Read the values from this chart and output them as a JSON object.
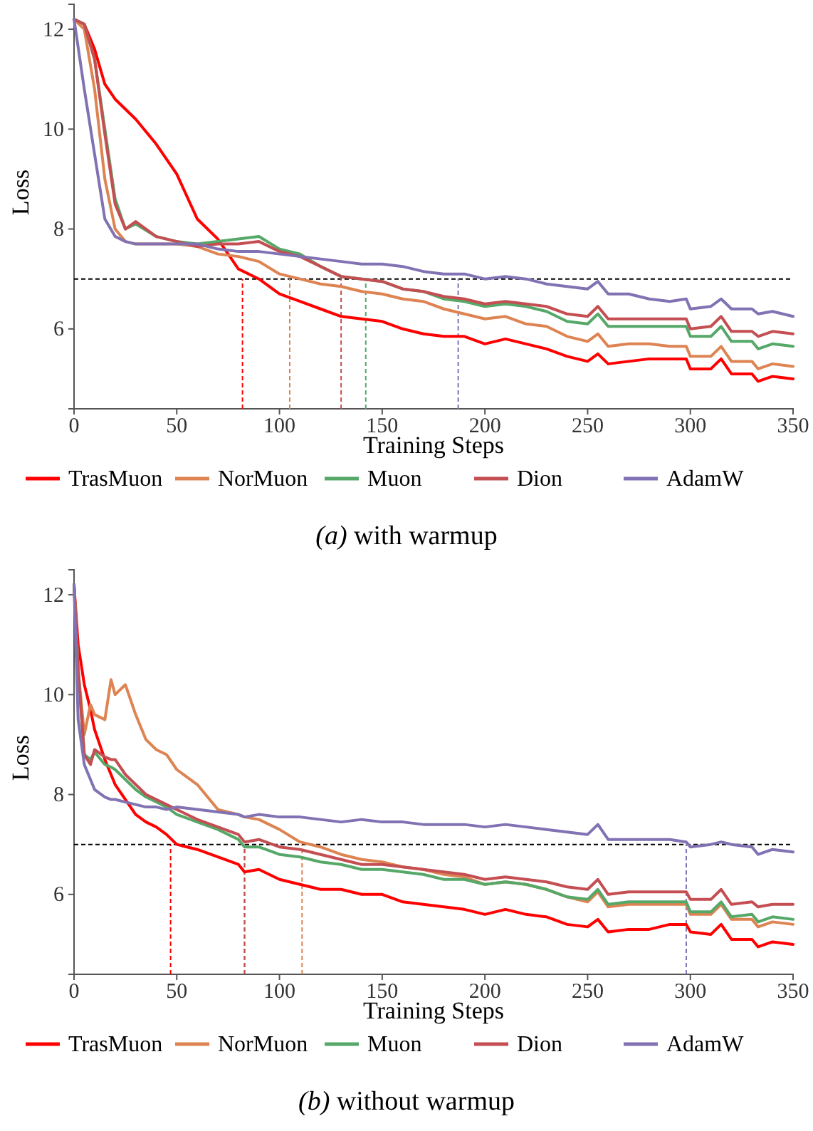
{
  "chart_data": [
    {
      "type": "line",
      "title": "(a) with warmup",
      "xlabel": "Training Steps",
      "ylabel": "Loss",
      "xlim": [
        0,
        350
      ],
      "xticks": [
        0,
        50,
        100,
        150,
        200,
        250,
        300,
        350
      ],
      "ylim": [
        4.4,
        12.5
      ],
      "yticks": [
        6,
        8,
        10,
        12
      ],
      "grid": false,
      "legend": "bottom",
      "line_style": "solid",
      "marker": "none",
      "x": [
        0,
        5,
        10,
        15,
        20,
        25,
        30,
        40,
        50,
        60,
        70,
        80,
        90,
        100,
        110,
        120,
        130,
        140,
        150,
        160,
        170,
        180,
        190,
        200,
        210,
        220,
        230,
        240,
        250,
        255,
        260,
        270,
        280,
        290,
        298,
        300,
        310,
        315,
        320,
        330,
        333,
        340,
        350
      ],
      "series": [
        {
          "name": "TrasMuon",
          "color": "#ff0000",
          "values": [
            12.2,
            12.1,
            11.6,
            10.9,
            10.6,
            10.4,
            10.2,
            9.7,
            9.1,
            8.2,
            7.8,
            7.2,
            7.0,
            6.7,
            6.55,
            6.4,
            6.25,
            6.2,
            6.15,
            6.0,
            5.9,
            5.85,
            5.85,
            5.7,
            5.8,
            5.7,
            5.6,
            5.45,
            5.35,
            5.5,
            5.3,
            5.35,
            5.4,
            5.4,
            5.4,
            5.2,
            5.2,
            5.4,
            5.1,
            5.1,
            4.95,
            5.05,
            5.0
          ]
        },
        {
          "name": "NorMuon",
          "color": "#dd8452",
          "values": [
            12.2,
            12.0,
            10.8,
            9.0,
            8.0,
            7.75,
            7.7,
            7.7,
            7.7,
            7.65,
            7.5,
            7.45,
            7.35,
            7.1,
            7.0,
            6.9,
            6.85,
            6.75,
            6.7,
            6.6,
            6.55,
            6.4,
            6.3,
            6.2,
            6.25,
            6.1,
            6.05,
            5.85,
            5.75,
            5.9,
            5.65,
            5.7,
            5.7,
            5.65,
            5.65,
            5.45,
            5.45,
            5.65,
            5.35,
            5.35,
            5.2,
            5.3,
            5.25
          ]
        },
        {
          "name": "Muon",
          "color": "#55a868",
          "values": [
            12.2,
            12.1,
            11.4,
            10.0,
            8.6,
            8.0,
            8.1,
            7.85,
            7.75,
            7.7,
            7.75,
            7.8,
            7.85,
            7.6,
            7.5,
            7.25,
            7.05,
            7.0,
            6.95,
            6.8,
            6.75,
            6.6,
            6.55,
            6.45,
            6.5,
            6.45,
            6.35,
            6.15,
            6.1,
            6.3,
            6.05,
            6.05,
            6.05,
            6.05,
            6.05,
            5.85,
            5.85,
            6.05,
            5.75,
            5.75,
            5.6,
            5.7,
            5.65
          ]
        },
        {
          "name": "Dion",
          "color": "#c44e52",
          "values": [
            12.2,
            12.1,
            11.4,
            9.9,
            8.5,
            8.0,
            8.15,
            7.85,
            7.75,
            7.65,
            7.7,
            7.7,
            7.75,
            7.55,
            7.45,
            7.25,
            7.05,
            7.0,
            6.95,
            6.8,
            6.75,
            6.65,
            6.6,
            6.5,
            6.55,
            6.5,
            6.45,
            6.3,
            6.25,
            6.45,
            6.2,
            6.2,
            6.2,
            6.2,
            6.2,
            6.0,
            6.05,
            6.25,
            5.95,
            5.95,
            5.85,
            5.95,
            5.9
          ]
        },
        {
          "name": "AdamW",
          "color": "#8172b3",
          "values": [
            12.2,
            10.8,
            9.5,
            8.2,
            7.85,
            7.75,
            7.7,
            7.7,
            7.7,
            7.7,
            7.6,
            7.55,
            7.55,
            7.5,
            7.45,
            7.4,
            7.35,
            7.3,
            7.3,
            7.25,
            7.15,
            7.1,
            7.1,
            7.0,
            7.05,
            7.0,
            6.9,
            6.85,
            6.8,
            6.95,
            6.7,
            6.7,
            6.6,
            6.55,
            6.6,
            6.4,
            6.45,
            6.6,
            6.4,
            6.4,
            6.3,
            6.35,
            6.25
          ]
        }
      ],
      "ref_lines": [
        {
          "axis": "y",
          "value": 7,
          "color": "#000000",
          "line_style": "dashed"
        },
        {
          "axis": "x",
          "value": 82,
          "color": "#ff0000",
          "line_style": "dashed"
        },
        {
          "axis": "x",
          "value": 105,
          "color": "#dd8452",
          "line_style": "dashed"
        },
        {
          "axis": "x",
          "value": 130,
          "color": "#c44e52",
          "line_style": "dashed"
        },
        {
          "axis": "x",
          "value": 142,
          "color": "#55a868",
          "line_style": "dashed"
        },
        {
          "axis": "x",
          "value": 187,
          "color": "#8172b3",
          "line_style": "dashed"
        }
      ]
    },
    {
      "type": "line",
      "title": "(b) without warmup",
      "xlabel": "Training Steps",
      "ylabel": "Loss",
      "xlim": [
        0,
        350
      ],
      "xticks": [
        0,
        50,
        100,
        150,
        200,
        250,
        300,
        350
      ],
      "ylim": [
        4.4,
        12.5
      ],
      "yticks": [
        6,
        8,
        10,
        12
      ],
      "grid": false,
      "legend": "bottom",
      "line_style": "solid",
      "marker": "none",
      "x": [
        0,
        2,
        5,
        8,
        10,
        15,
        18,
        20,
        25,
        30,
        35,
        40,
        45,
        50,
        60,
        70,
        80,
        83,
        90,
        100,
        110,
        120,
        130,
        140,
        150,
        160,
        170,
        180,
        190,
        200,
        210,
        220,
        230,
        240,
        250,
        255,
        260,
        270,
        280,
        290,
        298,
        300,
        310,
        315,
        320,
        330,
        333,
        340,
        350
      ],
      "series": [
        {
          "name": "TrasMuon",
          "color": "#ff0000",
          "values": [
            12.2,
            11.0,
            10.2,
            9.7,
            9.3,
            8.7,
            8.4,
            8.2,
            7.9,
            7.6,
            7.45,
            7.35,
            7.2,
            7.0,
            6.9,
            6.75,
            6.6,
            6.45,
            6.5,
            6.3,
            6.2,
            6.1,
            6.1,
            6.0,
            6.0,
            5.85,
            5.8,
            5.75,
            5.7,
            5.6,
            5.7,
            5.6,
            5.55,
            5.4,
            5.35,
            5.5,
            5.25,
            5.3,
            5.3,
            5.4,
            5.4,
            5.25,
            5.2,
            5.4,
            5.1,
            5.1,
            4.95,
            5.05,
            5.0
          ]
        },
        {
          "name": "NorMuon",
          "color": "#dd8452",
          "values": [
            12.2,
            10.5,
            9.2,
            9.8,
            9.6,
            9.5,
            10.3,
            10.0,
            10.2,
            9.6,
            9.1,
            8.9,
            8.8,
            8.5,
            8.2,
            7.7,
            7.6,
            7.55,
            7.5,
            7.3,
            7.05,
            6.95,
            6.8,
            6.7,
            6.65,
            6.55,
            6.5,
            6.4,
            6.35,
            6.2,
            6.25,
            6.2,
            6.1,
            5.95,
            5.85,
            6.05,
            5.75,
            5.8,
            5.8,
            5.8,
            5.8,
            5.6,
            5.6,
            5.8,
            5.5,
            5.5,
            5.35,
            5.45,
            5.4
          ]
        },
        {
          "name": "Muon",
          "color": "#55a868",
          "values": [
            12.2,
            10.5,
            8.8,
            8.7,
            8.85,
            8.6,
            8.55,
            8.5,
            8.3,
            8.1,
            7.95,
            7.85,
            7.75,
            7.6,
            7.45,
            7.3,
            7.1,
            6.95,
            6.95,
            6.8,
            6.75,
            6.65,
            6.6,
            6.5,
            6.5,
            6.45,
            6.4,
            6.3,
            6.3,
            6.2,
            6.25,
            6.2,
            6.1,
            5.95,
            5.9,
            6.1,
            5.8,
            5.85,
            5.85,
            5.85,
            5.85,
            5.65,
            5.65,
            5.85,
            5.55,
            5.6,
            5.45,
            5.55,
            5.5
          ]
        },
        {
          "name": "Dion",
          "color": "#c44e52",
          "values": [
            12.2,
            10.5,
            8.8,
            8.6,
            8.9,
            8.75,
            8.7,
            8.7,
            8.4,
            8.2,
            8.0,
            7.9,
            7.8,
            7.7,
            7.5,
            7.35,
            7.2,
            7.05,
            7.1,
            6.95,
            6.9,
            6.8,
            6.7,
            6.6,
            6.6,
            6.55,
            6.5,
            6.45,
            6.4,
            6.3,
            6.35,
            6.3,
            6.25,
            6.15,
            6.1,
            6.3,
            6.0,
            6.05,
            6.05,
            6.05,
            6.05,
            5.9,
            5.9,
            6.1,
            5.8,
            5.85,
            5.75,
            5.8,
            5.8
          ]
        },
        {
          "name": "AdamW",
          "color": "#8172b3",
          "values": [
            12.2,
            9.5,
            8.6,
            8.3,
            8.1,
            7.95,
            7.9,
            7.9,
            7.85,
            7.8,
            7.75,
            7.75,
            7.7,
            7.75,
            7.7,
            7.65,
            7.6,
            7.55,
            7.6,
            7.55,
            7.55,
            7.5,
            7.45,
            7.5,
            7.45,
            7.45,
            7.4,
            7.4,
            7.4,
            7.35,
            7.4,
            7.35,
            7.3,
            7.25,
            7.2,
            7.4,
            7.1,
            7.1,
            7.1,
            7.1,
            7.05,
            6.95,
            7.0,
            7.05,
            7.0,
            6.95,
            6.8,
            6.9,
            6.85
          ]
        }
      ],
      "ref_lines": [
        {
          "axis": "y",
          "value": 7,
          "color": "#000000",
          "line_style": "dashed"
        },
        {
          "axis": "x",
          "value": 47,
          "color": "#ff0000",
          "line_style": "dashed"
        },
        {
          "axis": "x",
          "value": 83,
          "color": "#55a868",
          "line_style": "dashed"
        },
        {
          "axis": "x",
          "value": 83,
          "color": "#c44e52",
          "line_style": "dashed"
        },
        {
          "axis": "x",
          "value": 111,
          "color": "#dd8452",
          "line_style": "dashed"
        },
        {
          "axis": "x",
          "value": 298,
          "color": "#8172b3",
          "line_style": "dashed"
        }
      ]
    }
  ]
}
